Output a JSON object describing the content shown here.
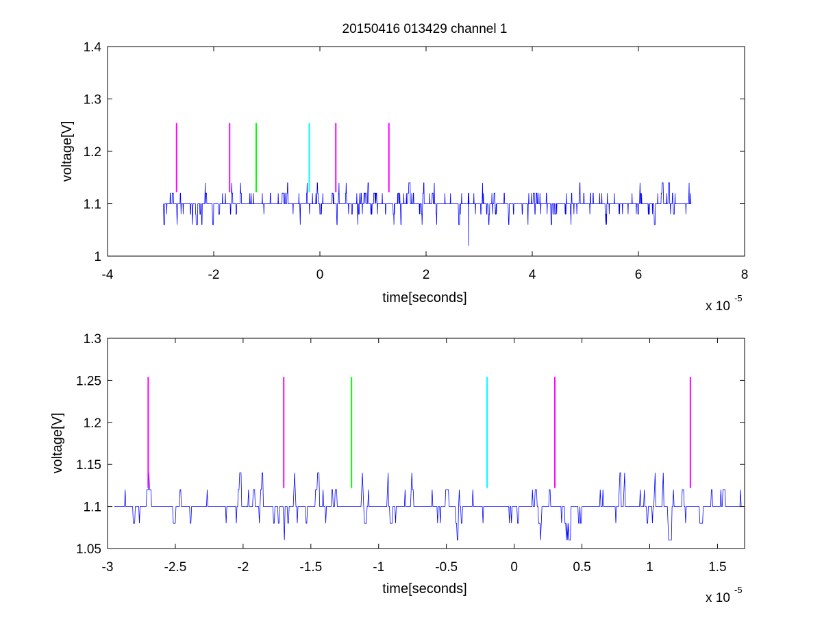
{
  "chart_data": [
    {
      "type": "line",
      "title": "20150416 013429 channel 1",
      "xlabel": "time[seconds]",
      "ylabel": "voltage[V]",
      "x_multiplier_label": "x 10",
      "x_multiplier_exponent": "-5",
      "xlim": [
        -4e-05,
        8e-05
      ],
      "ylim": [
        1.0,
        1.4
      ],
      "xticks": [
        -4,
        -2,
        0,
        2,
        4,
        6,
        8
      ],
      "yticks": [
        1,
        1.1,
        1.2,
        1.3,
        1.4
      ],
      "xtick_labels": [
        "-4",
        "-2",
        "0",
        "2",
        "4",
        "6",
        "8"
      ],
      "ytick_labels": [
        "1",
        "1.1",
        "1.2",
        "1.3",
        "1.4"
      ],
      "signal": {
        "color": "#0000ff",
        "x_start": -2.95e-05,
        "x_end": 7e-05,
        "baseline": 1.1,
        "levels": [
          1.06,
          1.08,
          1.1,
          1.12,
          1.14
        ],
        "outlier": {
          "x": 2.8e-05,
          "y": 1.02
        }
      },
      "markers": [
        {
          "x": -2.7e-05,
          "color": "#ff00ff",
          "y0": 1.122,
          "y1": 1.254
        },
        {
          "x": -1.7e-05,
          "color": "#ff00ff",
          "y0": 1.122,
          "y1": 1.254
        },
        {
          "x": -1.2e-05,
          "color": "#00ff00",
          "y0": 1.122,
          "y1": 1.254
        },
        {
          "x": -2e-06,
          "color": "#00ffff",
          "y0": 1.122,
          "y1": 1.254
        },
        {
          "x": 3e-06,
          "color": "#ff00ff",
          "y0": 1.122,
          "y1": 1.254
        },
        {
          "x": 1.3e-05,
          "color": "#ff00ff",
          "y0": 1.122,
          "y1": 1.254
        }
      ]
    },
    {
      "type": "line",
      "title": "",
      "xlabel": "time[seconds]",
      "ylabel": "voltage[V]",
      "x_multiplier_label": "x 10",
      "x_multiplier_exponent": "-5",
      "xlim": [
        -3e-05,
        1.7e-05
      ],
      "ylim": [
        1.05,
        1.3
      ],
      "xticks": [
        -3,
        -2.5,
        -2,
        -1.5,
        -1,
        -0.5,
        0,
        0.5,
        1,
        1.5
      ],
      "yticks": [
        1.05,
        1.1,
        1.15,
        1.2,
        1.25,
        1.3
      ],
      "xtick_labels": [
        "-3",
        "-2.5",
        "-2",
        "-1.5",
        "-1",
        "-0.5",
        "0",
        "0.5",
        "1",
        "1.5"
      ],
      "ytick_labels": [
        "1.05",
        "1.1",
        "1.15",
        "1.2",
        "1.25",
        "1.3"
      ],
      "signal": {
        "color": "#0000ff",
        "x_start": -2.95e-05,
        "x_end": 1.7e-05,
        "baseline": 1.1,
        "levels": [
          1.06,
          1.08,
          1.1,
          1.12,
          1.14
        ]
      },
      "markers": [
        {
          "x": -2.7e-05,
          "color": "#ff00ff",
          "y0": 1.122,
          "y1": 1.254
        },
        {
          "x": -1.7e-05,
          "color": "#ff00ff",
          "y0": 1.122,
          "y1": 1.254
        },
        {
          "x": -1.2e-05,
          "color": "#00ff00",
          "y0": 1.122,
          "y1": 1.254
        },
        {
          "x": -2e-06,
          "color": "#00ffff",
          "y0": 1.122,
          "y1": 1.254
        },
        {
          "x": 3e-06,
          "color": "#ff00ff",
          "y0": 1.122,
          "y1": 1.254
        },
        {
          "x": 1.3e-05,
          "color": "#ff00ff",
          "y0": 1.122,
          "y1": 1.254
        }
      ]
    }
  ]
}
